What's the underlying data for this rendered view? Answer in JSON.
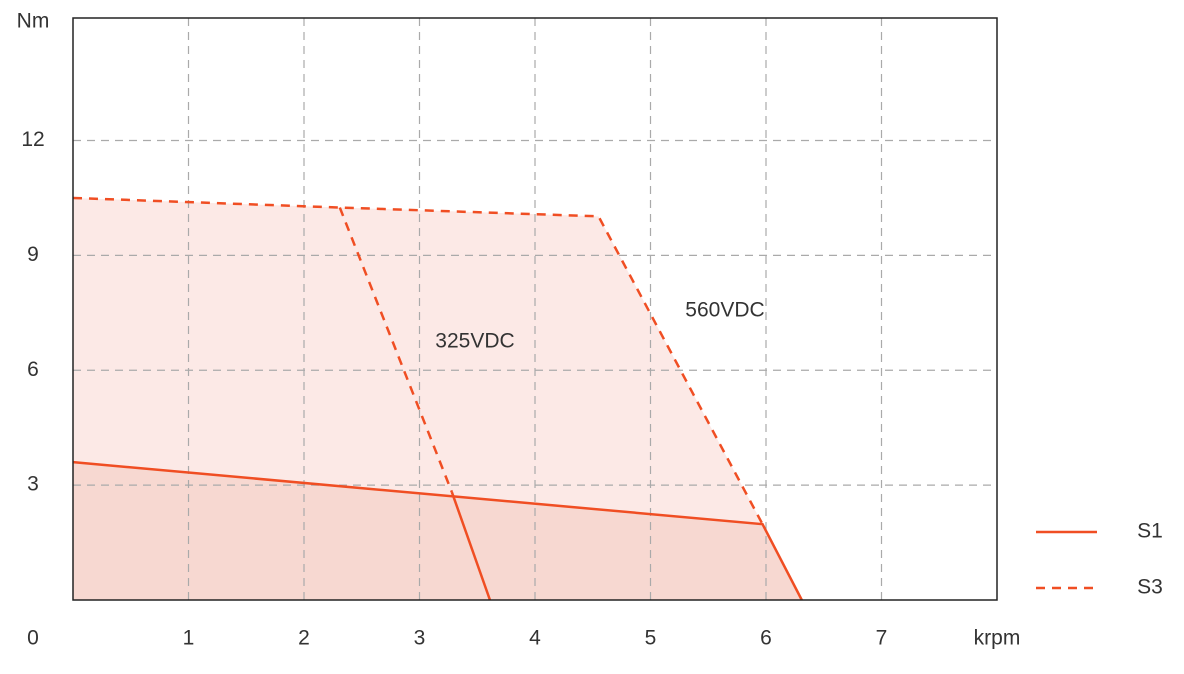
{
  "chart_data": {
    "type": "line",
    "y_label": "Nm",
    "x_label": "krpm",
    "xlim": [
      0,
      8
    ],
    "ylim": [
      0,
      15.2
    ],
    "xticks": [
      0,
      1,
      2,
      3,
      4,
      5,
      6,
      7
    ],
    "yticks": [
      3,
      6,
      9,
      12
    ],
    "grid": true,
    "legend": "right",
    "series": [
      {
        "name": "S1",
        "color": "#f04e23",
        "dashed": false,
        "fill": "#f7d8d1",
        "curves": [
          {
            "x": [
              0,
              5.97,
              6.31
            ],
            "y": [
              3.6,
              1.98,
              0
            ]
          },
          {
            "x": [
              3.28,
              3.61
            ],
            "y": [
              2.82,
              0
            ]
          }
        ]
      },
      {
        "name": "S3",
        "color": "#f04e23",
        "dashed": true,
        "fill": "#fce9e6",
        "curves": [
          {
            "x": [
              0,
              2.31,
              4.55,
              5.97
            ],
            "y": [
              10.5,
              10.25,
              10.02,
              1.98
            ]
          },
          {
            "x": [
              2.31,
              3.28
            ],
            "y": [
              10.25,
              2.82
            ]
          }
        ]
      }
    ],
    "annotations": [
      "325VDC",
      "560VDC"
    ]
  }
}
